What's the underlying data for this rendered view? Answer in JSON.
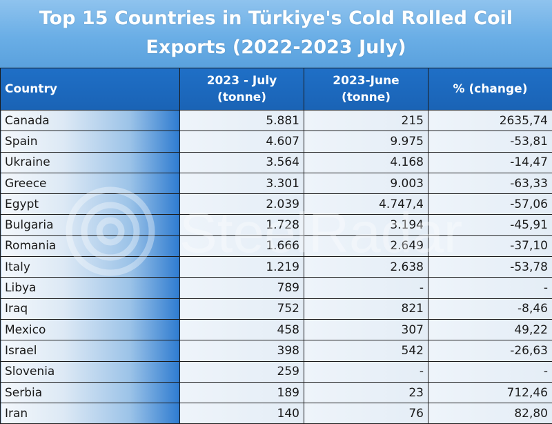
{
  "title_line1": "Top 15 Countries in Türkiye's Cold Rolled Coil",
  "title_line2": "Exports (2022-2023 July)",
  "headers": {
    "country": "Country",
    "july": "2023 - July (tonne)",
    "june": "2023-June (tonne)",
    "change": "% (change)"
  },
  "watermark": "SteelRadar",
  "rows": [
    {
      "country": "Canada",
      "july": "5.881",
      "june": "215",
      "change": "2635,74"
    },
    {
      "country": "Spain",
      "july": "4.607",
      "june": "9.975",
      "change": "-53,81"
    },
    {
      "country": "Ukraine",
      "july": "3.564",
      "june": "4.168",
      "change": "-14,47"
    },
    {
      "country": "Greece",
      "july": "3.301",
      "june": "9.003",
      "change": "-63,33"
    },
    {
      "country": "Egypt",
      "july": "2.039",
      "june": "4.747,4",
      "change": "-57,06"
    },
    {
      "country": "Bulgaria",
      "july": "1.728",
      "june": "3.194",
      "change": "-45,91"
    },
    {
      "country": "Romania",
      "july": "1.666",
      "june": "2.649",
      "change": "-37,10"
    },
    {
      "country": "Italy",
      "july": "1.219",
      "june": "2.638",
      "change": "-53,78"
    },
    {
      "country": "Libya",
      "july": "789",
      "june": "-",
      "change": "-"
    },
    {
      "country": "Iraq",
      "july": "752",
      "june": "821",
      "change": "-8,46"
    },
    {
      "country": "Mexico",
      "july": "458",
      "june": "307",
      "change": "49,22"
    },
    {
      "country": "Israel",
      "july": "398",
      "june": "542",
      "change": "-26,63"
    },
    {
      "country": "Slovenia",
      "july": "259",
      "june": "-",
      "change": "-"
    },
    {
      "country": "Serbia",
      "july": "189",
      "june": "23",
      "change": "712,46"
    },
    {
      "country": "Iran",
      "july": "140",
      "june": "76",
      "change": "82,80"
    }
  ],
  "chart_data": {
    "type": "table",
    "title": "Top 15 Countries in Türkiye's Cold Rolled Coil Exports (2022-2023 July)",
    "columns": [
      "Country",
      "2023 - July (tonne)",
      "2023-June (tonne)",
      "% (change)"
    ],
    "rows": [
      [
        "Canada",
        "5.881",
        "215",
        "2635,74"
      ],
      [
        "Spain",
        "4.607",
        "9.975",
        "-53,81"
      ],
      [
        "Ukraine",
        "3.564",
        "4.168",
        "-14,47"
      ],
      [
        "Greece",
        "3.301",
        "9.003",
        "-63,33"
      ],
      [
        "Egypt",
        "2.039",
        "4.747,4",
        "-57,06"
      ],
      [
        "Bulgaria",
        "1.728",
        "3.194",
        "-45,91"
      ],
      [
        "Romania",
        "1.666",
        "2.649",
        "-37,10"
      ],
      [
        "Italy",
        "1.219",
        "2.638",
        "-53,78"
      ],
      [
        "Libya",
        "789",
        "-",
        "-"
      ],
      [
        "Iraq",
        "752",
        "821",
        "-8,46"
      ],
      [
        "Mexico",
        "458",
        "307",
        "49,22"
      ],
      [
        "Israel",
        "398",
        "542",
        "-26,63"
      ],
      [
        "Slovenia",
        "259",
        "-",
        "-"
      ],
      [
        "Serbia",
        "189",
        "23",
        "712,46"
      ],
      [
        "Iran",
        "140",
        "76",
        "82,80"
      ]
    ]
  }
}
